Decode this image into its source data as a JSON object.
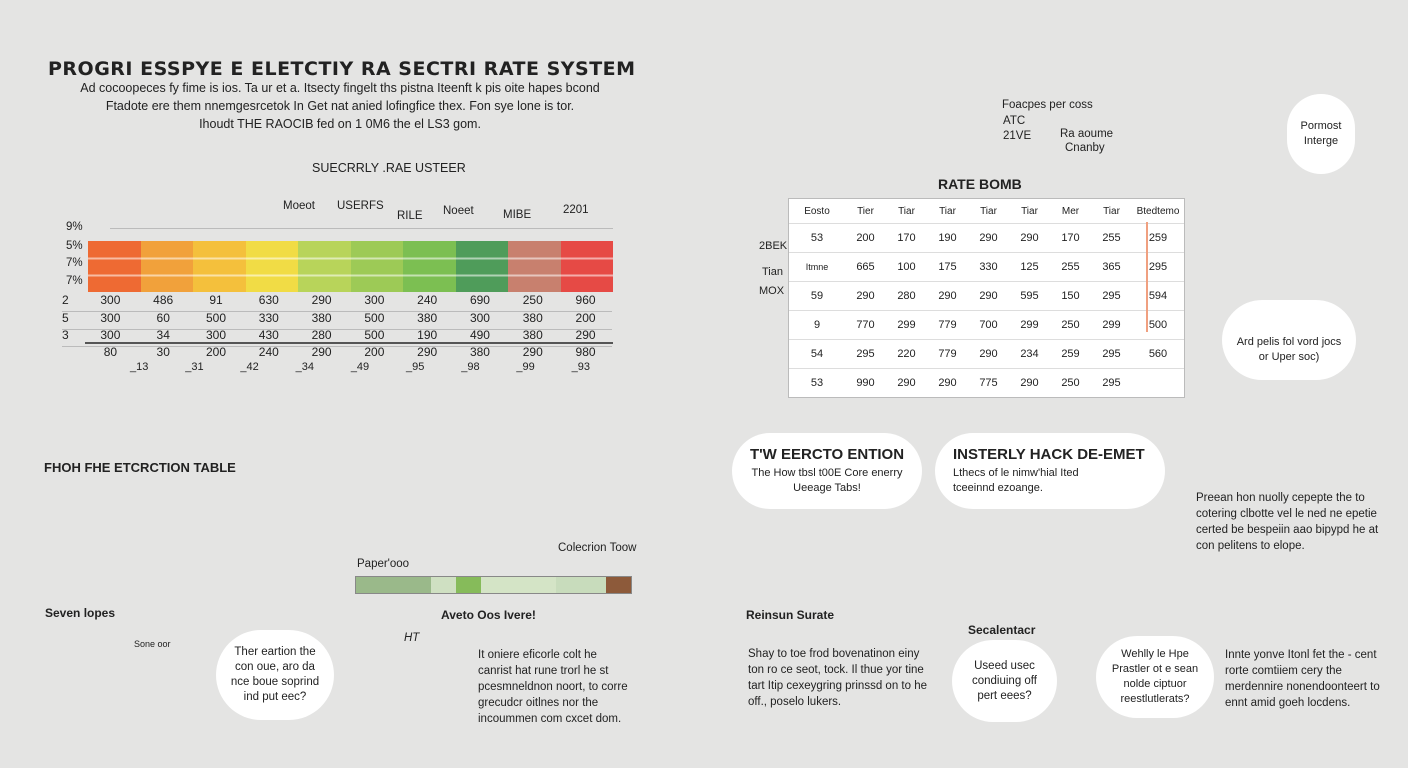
{
  "title": "PROGRI ESSPYE E ELETCTIY  RA SECTRI RATE SYSTEM",
  "intro": [
    "Ad cocoopeces fy fime is ios.  Ta  ur et a. Itsecty fingelt ths pistna Iteenft k pis oite hapes bcond",
    "Ftadote ere them nnemgesrcetok In  Get  nat anied lofingfice thex.  Fon sye lone is tor.",
    "Ihoudt THE RAOCIB fed on 1 0M6 the el LS3 gom."
  ],
  "gradient_chart": {
    "heading": "SUECRRLY .RAE USTEER",
    "tier_labels": [
      "Moeot",
      "USERFS",
      "RILE",
      "Noeet",
      "MIBE",
      "2201"
    ],
    "left_axis": [
      "9%",
      "5%",
      "7%",
      "7%"
    ],
    "band_colors": [
      "#ee6a33",
      "#f1a13b",
      "#f4c03c",
      "#f1dc45",
      "#b8d45a",
      "#9dca56",
      "#7cbf52",
      "#4f9c5a",
      "#c8806e",
      "#e64a45"
    ],
    "rows": [
      {
        "lead": "2",
        "values": [
          "300",
          "486",
          "91",
          "630",
          "290",
          "300",
          "240",
          "690",
          "250",
          "960"
        ]
      },
      {
        "lead": "5",
        "values": [
          "300",
          "60",
          "500",
          "330",
          "380",
          "500",
          "380",
          "300",
          "380",
          "200"
        ]
      },
      {
        "lead": "3",
        "values": [
          "300",
          "34",
          "300",
          "430",
          "280",
          "500",
          "190",
          "490",
          "380",
          "290"
        ]
      },
      {
        "lead": "",
        "values": [
          "80",
          "30",
          "200",
          "240",
          "290",
          "200",
          "290",
          "380",
          "290",
          "980"
        ]
      }
    ],
    "foot": [
      "_13",
      "_31",
      "_42",
      "_34",
      "_49",
      "_95",
      "_98",
      "_99",
      "_93"
    ]
  },
  "house_scene": {
    "lines": [
      "Foacpes per coss",
      "ATC",
      "21VE",
      "Ra aoume",
      "Cnanby"
    ]
  },
  "rate_table": {
    "title": "RATE BOMB",
    "headers": [
      "Eosto",
      "Tier",
      "Tiar",
      "Tiar",
      "Tiar",
      "Tiar",
      "Mer",
      "Tiar",
      "Btedtemo"
    ],
    "rows": [
      [
        "53",
        "200",
        "170",
        "190",
        "290",
        "290",
        "170",
        "255",
        "259"
      ],
      [
        "Itmne",
        "665",
        "100",
        "175",
        "330",
        "125",
        "255",
        "365",
        "295"
      ],
      [
        "59",
        "290",
        "280",
        "290",
        "290",
        "595",
        "150",
        "295",
        "594"
      ],
      [
        "9",
        "770",
        "299",
        "779",
        "700",
        "299",
        "250",
        "299",
        "500"
      ],
      [
        "54",
        "295",
        "220",
        "779",
        "290",
        "234",
        "259",
        "295",
        "560"
      ],
      [
        "53",
        "990",
        "290",
        "290",
        "775",
        "290",
        "250",
        "295",
        ""
      ]
    ],
    "side_labels": [
      "2BEK",
      "Tian",
      "MOX"
    ]
  },
  "tower": {
    "bubble_top": "Pormost Interge",
    "bubble_bottom": "Ard pelis fol vord jocs or Uper soc)"
  },
  "bottom_left": {
    "heading": "FHOH FHE ETCRCTION TABLE",
    "seven": "Seven lopes",
    "seven_bubble": "Sone oor",
    "ter_bubble": "Ther eartion the con oue, aro da nce boue soprind ind put eec?",
    "bar_label": "Paper'ooo",
    "bar_colors": [
      "#9ab98a",
      "#cfe0c2",
      "#86bb5a",
      "#d4e4c6",
      "#c8dcbc",
      "#8d5a3a"
    ],
    "collection": "Colecrion Toow",
    "aveto": "Aveto Oos Ivere!",
    "ht": "HT",
    "para": "It oniere eficorle colt he canrist hat rune trorl he st pcesmneldnon noort, to corre grecudcr oitlnes nor the incoummen com cxcet dom."
  },
  "bottom_right": {
    "bubble1_title": "T'W EERCTO ENTION",
    "bubble1_text": "The How tbsl t00E Core enerry Ueeage Tabs!",
    "bubble2_title": "INSTERLY HACK DE-EMET",
    "bubble2_text": "Lthecs of le nimw'hial Ited tceeinnd ezoange.",
    "para_right": "Preean hon nuolly cepepte the to cotering clbotte vel le ned ne epetie certed be bespeiin aao bipypd he at con pelitens to elope.",
    "reinsun": "Reinsun Surate",
    "para_left": "Shay to toe frod bovenatinon einy ton ro ce seot, tock. Il thue yor tine tart Itip cexeygring prinssd on to he off., poselo lukers.",
    "secalentacr": "Secalentacr",
    "used_bubble": "Useed usec condiuing off pert eees?",
    "weh_bubble": "Wehlly le Hpe Prastler ot e sean nolde ciptuor reestlutlerats?",
    "para_far": "Innte yonve Itonl fet the - cent rorte comtiiem cery the merdennire nonendoonteert to ennt amid goeh locdens."
  }
}
